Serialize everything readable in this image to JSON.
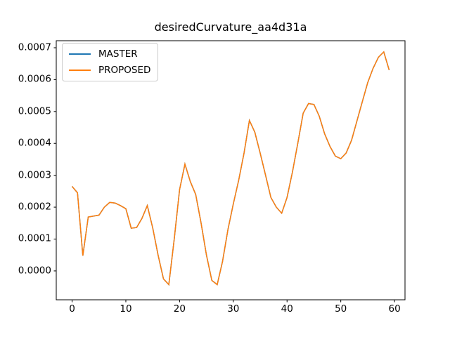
{
  "chart_data": {
    "type": "line",
    "title": "desiredCurvature_aa4d31a",
    "xlabel": "",
    "ylabel": "",
    "grid": false,
    "legend_position": "upper-left",
    "xlim": [
      -2.95,
      61.95
    ],
    "ylim": [
      -9.05e-05,
      0.000722
    ],
    "xticks": {
      "values": [
        0,
        10,
        20,
        30,
        40,
        50,
        60
      ],
      "labels": [
        "0",
        "10",
        "20",
        "30",
        "40",
        "50",
        "60"
      ]
    },
    "yticks": {
      "values": [
        0.0,
        0.0001,
        0.0002,
        0.0003,
        0.0004,
        0.0005,
        0.0006,
        0.0007
      ],
      "labels": [
        "0.0000",
        "0.0001",
        "0.0002",
        "0.0003",
        "0.0004",
        "0.0005",
        "0.0006",
        "0.0007"
      ]
    },
    "x": [
      0,
      1,
      2,
      3,
      4,
      5,
      6,
      7,
      8,
      9,
      10,
      11,
      12,
      13,
      14,
      15,
      16,
      17,
      18,
      19,
      20,
      21,
      22,
      23,
      24,
      25,
      26,
      27,
      28,
      29,
      30,
      31,
      32,
      33,
      34,
      35,
      36,
      37,
      38,
      39,
      40,
      41,
      42,
      43,
      44,
      45,
      46,
      47,
      48,
      49,
      50,
      51,
      52,
      53,
      54,
      55,
      56,
      57,
      58,
      59
    ],
    "series": [
      {
        "name": "MASTER",
        "color": "#1f77b4",
        "values": [
          0.000265,
          0.000245,
          4.8e-05,
          0.000169,
          0.000172,
          0.000175,
          0.0002,
          0.000215,
          0.000213,
          0.000205,
          0.000195,
          0.000134,
          0.000136,
          0.000165,
          0.000205,
          0.000135,
          5e-05,
          -2.5e-05,
          -4.3e-05,
          0.0001,
          0.000255,
          0.000335,
          0.00028,
          0.00024,
          0.00015,
          5e-05,
          -3e-05,
          -4.3e-05,
          3e-05,
          0.00013,
          0.00021,
          0.000285,
          0.00037,
          0.000472,
          0.000435,
          0.00037,
          0.0003,
          0.00023,
          0.0002,
          0.000181,
          0.00023,
          0.00031,
          0.0004,
          0.000495,
          0.000525,
          0.000522,
          0.000485,
          0.00043,
          0.00039,
          0.00036,
          0.000352,
          0.00037,
          0.00041,
          0.00047,
          0.00053,
          0.00059,
          0.000635,
          0.00067,
          0.000687,
          0.00063
        ]
      },
      {
        "name": "PROPOSED",
        "color": "#ff7f0e",
        "values": [
          0.000265,
          0.000245,
          4.8e-05,
          0.000169,
          0.000172,
          0.000175,
          0.0002,
          0.000215,
          0.000213,
          0.000205,
          0.000195,
          0.000134,
          0.000136,
          0.000165,
          0.000205,
          0.000135,
          5e-05,
          -2.5e-05,
          -4.3e-05,
          0.0001,
          0.000255,
          0.000335,
          0.00028,
          0.00024,
          0.00015,
          5e-05,
          -3e-05,
          -4.3e-05,
          3e-05,
          0.00013,
          0.00021,
          0.000285,
          0.00037,
          0.000472,
          0.000435,
          0.00037,
          0.0003,
          0.00023,
          0.0002,
          0.000181,
          0.00023,
          0.00031,
          0.0004,
          0.000495,
          0.000525,
          0.000522,
          0.000485,
          0.00043,
          0.00039,
          0.00036,
          0.000352,
          0.00037,
          0.00041,
          0.00047,
          0.00053,
          0.00059,
          0.000635,
          0.00067,
          0.000687,
          0.00063
        ]
      }
    ]
  }
}
